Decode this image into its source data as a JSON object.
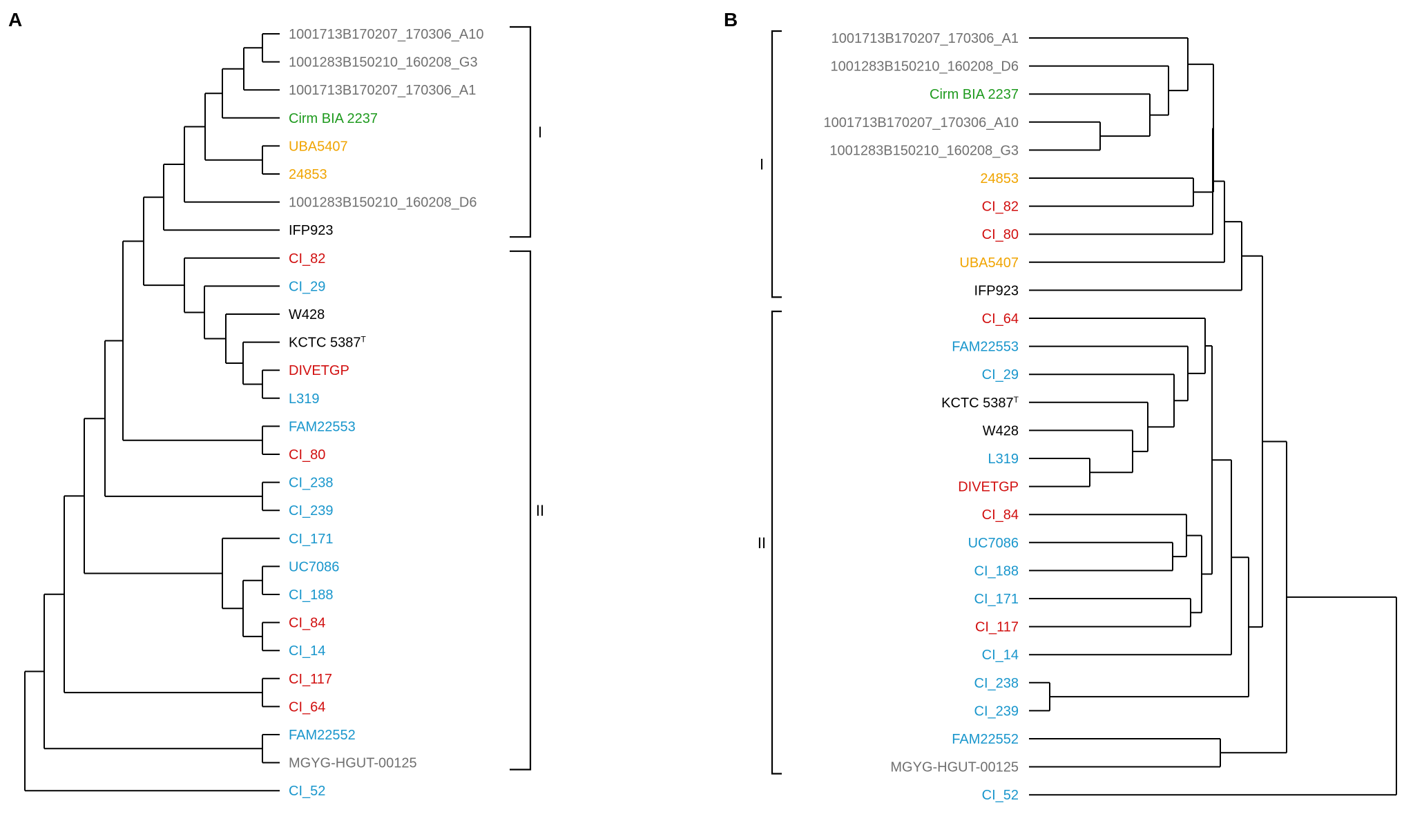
{
  "figure": {
    "colors": {
      "gray": "#707070",
      "green": "#1e9a1e",
      "orange": "#f0a400",
      "black": "#000000",
      "red": "#d10f0f",
      "blue": "#1996cc"
    },
    "panel_a": {
      "label": "A",
      "leaves": [
        {
          "label": "1001713B170207_170306_A10",
          "color": "gray"
        },
        {
          "label": "1001283B150210_160208_G3",
          "color": "gray"
        },
        {
          "label": "1001713B170207_170306_A1",
          "color": "gray"
        },
        {
          "label": "Cirm BIA 2237",
          "color": "green"
        },
        {
          "label": "UBA5407",
          "color": "orange"
        },
        {
          "label": "24853",
          "color": "orange"
        },
        {
          "label": "1001283B150210_160208_D6",
          "color": "gray"
        },
        {
          "label": "IFP923",
          "color": "black"
        },
        {
          "label": "CI_82",
          "color": "red"
        },
        {
          "label": "CI_29",
          "color": "blue"
        },
        {
          "label": "W428",
          "color": "black"
        },
        {
          "label": "KCTC 5387",
          "sup": "T",
          "color": "black"
        },
        {
          "label": "DIVETGP",
          "color": "red"
        },
        {
          "label": "L319",
          "color": "blue"
        },
        {
          "label": "FAM22553",
          "color": "blue"
        },
        {
          "label": "CI_80",
          "color": "red"
        },
        {
          "label": "CI_238",
          "color": "blue"
        },
        {
          "label": "CI_239",
          "color": "blue"
        },
        {
          "label": "CI_171",
          "color": "blue"
        },
        {
          "label": "UC7086",
          "color": "blue"
        },
        {
          "label": "CI_188",
          "color": "blue"
        },
        {
          "label": "CI_84",
          "color": "red"
        },
        {
          "label": "CI_14",
          "color": "blue"
        },
        {
          "label": "CI_117",
          "color": "red"
        },
        {
          "label": "CI_64",
          "color": "red"
        },
        {
          "label": "FAM22552",
          "color": "blue"
        },
        {
          "label": "MGYG-HGUT-00125",
          "color": "gray"
        },
        {
          "label": "CI_52",
          "color": "blue"
        }
      ],
      "clades": [
        {
          "label": "I",
          "first_leaf": 0,
          "last_leaf": 7
        },
        {
          "label": "II",
          "first_leaf": 8,
          "last_leaf": 26
        }
      ]
    },
    "panel_b": {
      "label": "B",
      "leaves": [
        {
          "label": "1001713B170207_170306_A1",
          "color": "gray"
        },
        {
          "label": "1001283B150210_160208_D6",
          "color": "gray"
        },
        {
          "label": "Cirm BIA 2237",
          "color": "green"
        },
        {
          "label": "1001713B170207_170306_A10",
          "color": "gray"
        },
        {
          "label": "1001283B150210_160208_G3",
          "color": "gray"
        },
        {
          "label": "24853",
          "color": "orange"
        },
        {
          "label": "CI_82",
          "color": "red"
        },
        {
          "label": "CI_80",
          "color": "red"
        },
        {
          "label": "UBA5407",
          "color": "orange"
        },
        {
          "label": "IFP923",
          "color": "black"
        },
        {
          "label": "CI_64",
          "color": "red"
        },
        {
          "label": "FAM22553",
          "color": "blue"
        },
        {
          "label": "CI_29",
          "color": "blue"
        },
        {
          "label": "KCTC 5387",
          "sup": "T",
          "color": "black"
        },
        {
          "label": "W428",
          "color": "black"
        },
        {
          "label": "L319",
          "color": "blue"
        },
        {
          "label": "DIVETGP",
          "color": "red"
        },
        {
          "label": "CI_84",
          "color": "red"
        },
        {
          "label": "UC7086",
          "color": "blue"
        },
        {
          "label": "CI_188",
          "color": "blue"
        },
        {
          "label": "CI_171",
          "color": "blue"
        },
        {
          "label": "CI_117",
          "color": "red"
        },
        {
          "label": "CI_14",
          "color": "blue"
        },
        {
          "label": "CI_238",
          "color": "blue"
        },
        {
          "label": "CI_239",
          "color": "blue"
        },
        {
          "label": "FAM22552",
          "color": "blue"
        },
        {
          "label": "MGYG-HGUT-00125",
          "color": "gray"
        },
        {
          "label": "CI_52",
          "color": "blue"
        }
      ],
      "clades": [
        {
          "label": "I",
          "first_leaf": 0,
          "last_leaf": 9
        },
        {
          "label": "II",
          "first_leaf": 10,
          "last_leaf": 26
        }
      ]
    }
  }
}
